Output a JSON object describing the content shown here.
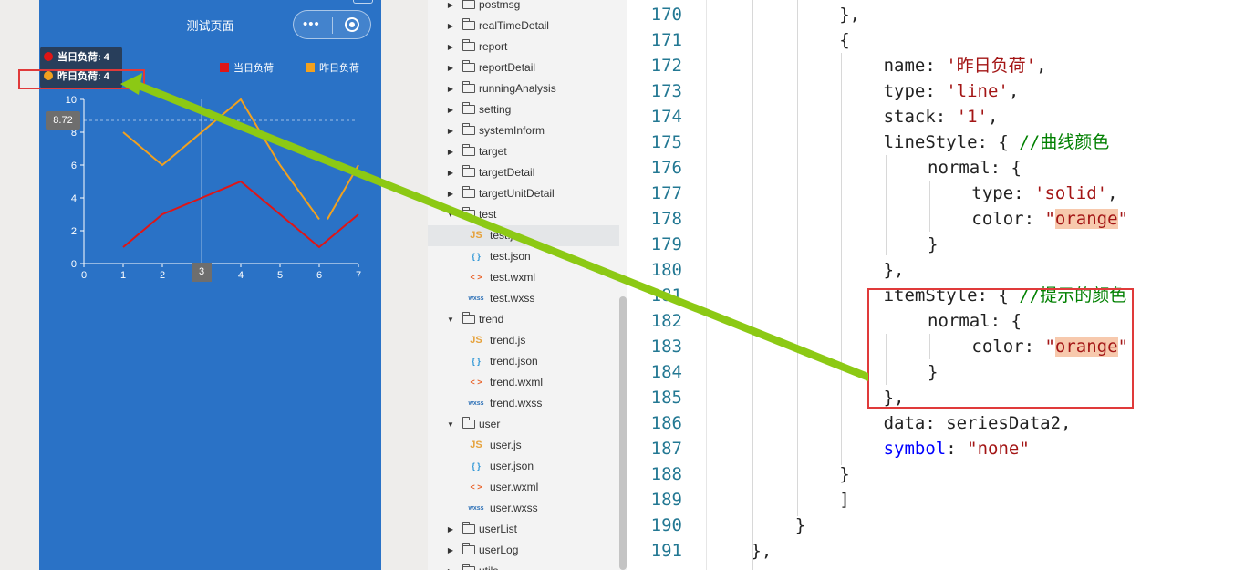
{
  "phone": {
    "title": "测试页面",
    "capsule_dots": "•••",
    "chart": {
      "legend": [
        "当日负荷",
        "昨日负荷"
      ],
      "tooltip_rows": [
        {
          "text": "当日负荷: 4",
          "color": "#e01515"
        },
        {
          "text": "昨日负荷: 4",
          "color": "#f2a11e"
        }
      ],
      "y_pointer": "8.72",
      "x_pointer": "3"
    }
  },
  "chart_data": {
    "type": "line",
    "x": [
      0,
      1,
      2,
      3,
      4,
      5,
      6,
      7
    ],
    "y_ticks": [
      0,
      2,
      4,
      6,
      8,
      10
    ],
    "xlim": [
      0,
      7
    ],
    "ylim": [
      0,
      10
    ],
    "grid": false,
    "legend_position": "top-right",
    "series": [
      {
        "name": "当日负荷",
        "color": "#e01515",
        "x": [
          1,
          2,
          3,
          4,
          5,
          6,
          7
        ],
        "values": [
          1,
          3,
          4,
          5,
          3,
          1,
          3
        ]
      },
      {
        "name": "昨日负荷",
        "color": "#f2a11e",
        "x": [
          1,
          2,
          3,
          4,
          5,
          6,
          7
        ],
        "values": [
          8,
          6,
          8,
          10,
          6,
          2.7,
          6
        ]
      }
    ]
  },
  "tree": {
    "items": [
      {
        "label": "postmsg",
        "type": "folder",
        "state": "collapsed"
      },
      {
        "label": "realTimeDetail",
        "type": "folder",
        "state": "collapsed"
      },
      {
        "label": "report",
        "type": "folder",
        "state": "collapsed"
      },
      {
        "label": "reportDetail",
        "type": "folder",
        "state": "collapsed"
      },
      {
        "label": "runningAnalysis",
        "type": "folder",
        "state": "collapsed"
      },
      {
        "label": "setting",
        "type": "folder",
        "state": "collapsed"
      },
      {
        "label": "systemInform",
        "type": "folder",
        "state": "collapsed"
      },
      {
        "label": "target",
        "type": "folder",
        "state": "collapsed"
      },
      {
        "label": "targetDetail",
        "type": "folder",
        "state": "collapsed"
      },
      {
        "label": "targetUnitDetail",
        "type": "folder",
        "state": "collapsed"
      },
      {
        "label": "test",
        "type": "folder",
        "state": "expanded"
      },
      {
        "label": "test.js",
        "type": "js",
        "icon": "JS",
        "selected": true
      },
      {
        "label": "test.json",
        "type": "json",
        "icon": "{ }"
      },
      {
        "label": "test.wxml",
        "type": "wxml",
        "icon": "< >"
      },
      {
        "label": "test.wxss",
        "type": "wxss",
        "icon": "wxss"
      },
      {
        "label": "trend",
        "type": "folder",
        "state": "expanded"
      },
      {
        "label": "trend.js",
        "type": "js",
        "icon": "JS"
      },
      {
        "label": "trend.json",
        "type": "json",
        "icon": "{ }"
      },
      {
        "label": "trend.wxml",
        "type": "wxml",
        "icon": "< >"
      },
      {
        "label": "trend.wxss",
        "type": "wxss",
        "icon": "wxss"
      },
      {
        "label": "user",
        "type": "folder",
        "state": "expanded"
      },
      {
        "label": "user.js",
        "type": "js",
        "icon": "JS"
      },
      {
        "label": "user.json",
        "type": "json",
        "icon": "{ }"
      },
      {
        "label": "user.wxml",
        "type": "wxml",
        "icon": "< >"
      },
      {
        "label": "user.wxss",
        "type": "wxss",
        "icon": "wxss"
      },
      {
        "label": "userList",
        "type": "folder",
        "state": "collapsed"
      },
      {
        "label": "userLog",
        "type": "folder",
        "state": "collapsed"
      },
      {
        "label": "utils",
        "type": "folder",
        "state": "collapsed"
      }
    ]
  },
  "editor": {
    "lines": [
      {
        "n": "170",
        "indent": 12,
        "parts": [
          {
            "t": "},"
          }
        ]
      },
      {
        "n": "171",
        "indent": 12,
        "parts": [
          {
            "t": "{"
          }
        ]
      },
      {
        "n": "172",
        "indent": 16,
        "parts": [
          {
            "t": "name: "
          },
          {
            "t": "'昨日负荷'",
            "c": "str"
          },
          {
            "t": ","
          }
        ]
      },
      {
        "n": "173",
        "indent": 16,
        "parts": [
          {
            "t": "type: "
          },
          {
            "t": "'line'",
            "c": "str"
          },
          {
            "t": ","
          }
        ]
      },
      {
        "n": "174",
        "indent": 16,
        "parts": [
          {
            "t": "stack: "
          },
          {
            "t": "'1'",
            "c": "str"
          },
          {
            "t": ","
          }
        ]
      },
      {
        "n": "175",
        "indent": 16,
        "parts": [
          {
            "t": "lineStyle: { "
          },
          {
            "t": "//曲线颜色",
            "c": "cmt"
          }
        ]
      },
      {
        "n": "176",
        "indent": 20,
        "parts": [
          {
            "t": "normal: {"
          }
        ]
      },
      {
        "n": "177",
        "indent": 24,
        "parts": [
          {
            "t": "type: "
          },
          {
            "t": "'solid'",
            "c": "str"
          },
          {
            "t": ","
          }
        ]
      },
      {
        "n": "178",
        "indent": 24,
        "parts": [
          {
            "t": "color: "
          },
          {
            "t": "\"",
            "c": "str"
          },
          {
            "t": "orange",
            "c": "str hl"
          },
          {
            "t": "\"",
            "c": "str"
          }
        ]
      },
      {
        "n": "179",
        "indent": 20,
        "parts": [
          {
            "t": "}"
          }
        ]
      },
      {
        "n": "180",
        "indent": 16,
        "parts": [
          {
            "t": "},"
          }
        ]
      },
      {
        "n": "181",
        "indent": 16,
        "parts": [
          {
            "t": "itemStyle: { "
          },
          {
            "t": "//提示的颜色",
            "c": "cmt"
          }
        ]
      },
      {
        "n": "182",
        "indent": 20,
        "parts": [
          {
            "t": "normal: {"
          }
        ]
      },
      {
        "n": "183",
        "indent": 24,
        "parts": [
          {
            "t": "color: "
          },
          {
            "t": "\"",
            "c": "str"
          },
          {
            "t": "orange",
            "c": "str hl"
          },
          {
            "t": "\"",
            "c": "str"
          }
        ]
      },
      {
        "n": "184",
        "indent": 20,
        "parts": [
          {
            "t": "}"
          }
        ]
      },
      {
        "n": "185",
        "indent": 16,
        "parts": [
          {
            "t": "},"
          }
        ]
      },
      {
        "n": "186",
        "indent": 16,
        "parts": [
          {
            "t": "data: seriesData2,"
          }
        ]
      },
      {
        "n": "187",
        "indent": 16,
        "parts": [
          {
            "t": "symbol",
            "c": "kw"
          },
          {
            "t": ": "
          },
          {
            "t": "\"none\"",
            "c": "str"
          }
        ]
      },
      {
        "n": "188",
        "indent": 12,
        "parts": [
          {
            "t": "}"
          }
        ]
      },
      {
        "n": "189",
        "indent": 12,
        "parts": [
          {
            "t": "]"
          }
        ]
      },
      {
        "n": "190",
        "indent": 8,
        "parts": [
          {
            "t": "}"
          }
        ]
      },
      {
        "n": "191",
        "indent": 4,
        "parts": [
          {
            "t": "},"
          }
        ]
      }
    ]
  },
  "colors": {
    "phone_bg": "#2a72c6",
    "annotation_red": "#e03a3a",
    "annotation_arrow": "#8cc914"
  }
}
